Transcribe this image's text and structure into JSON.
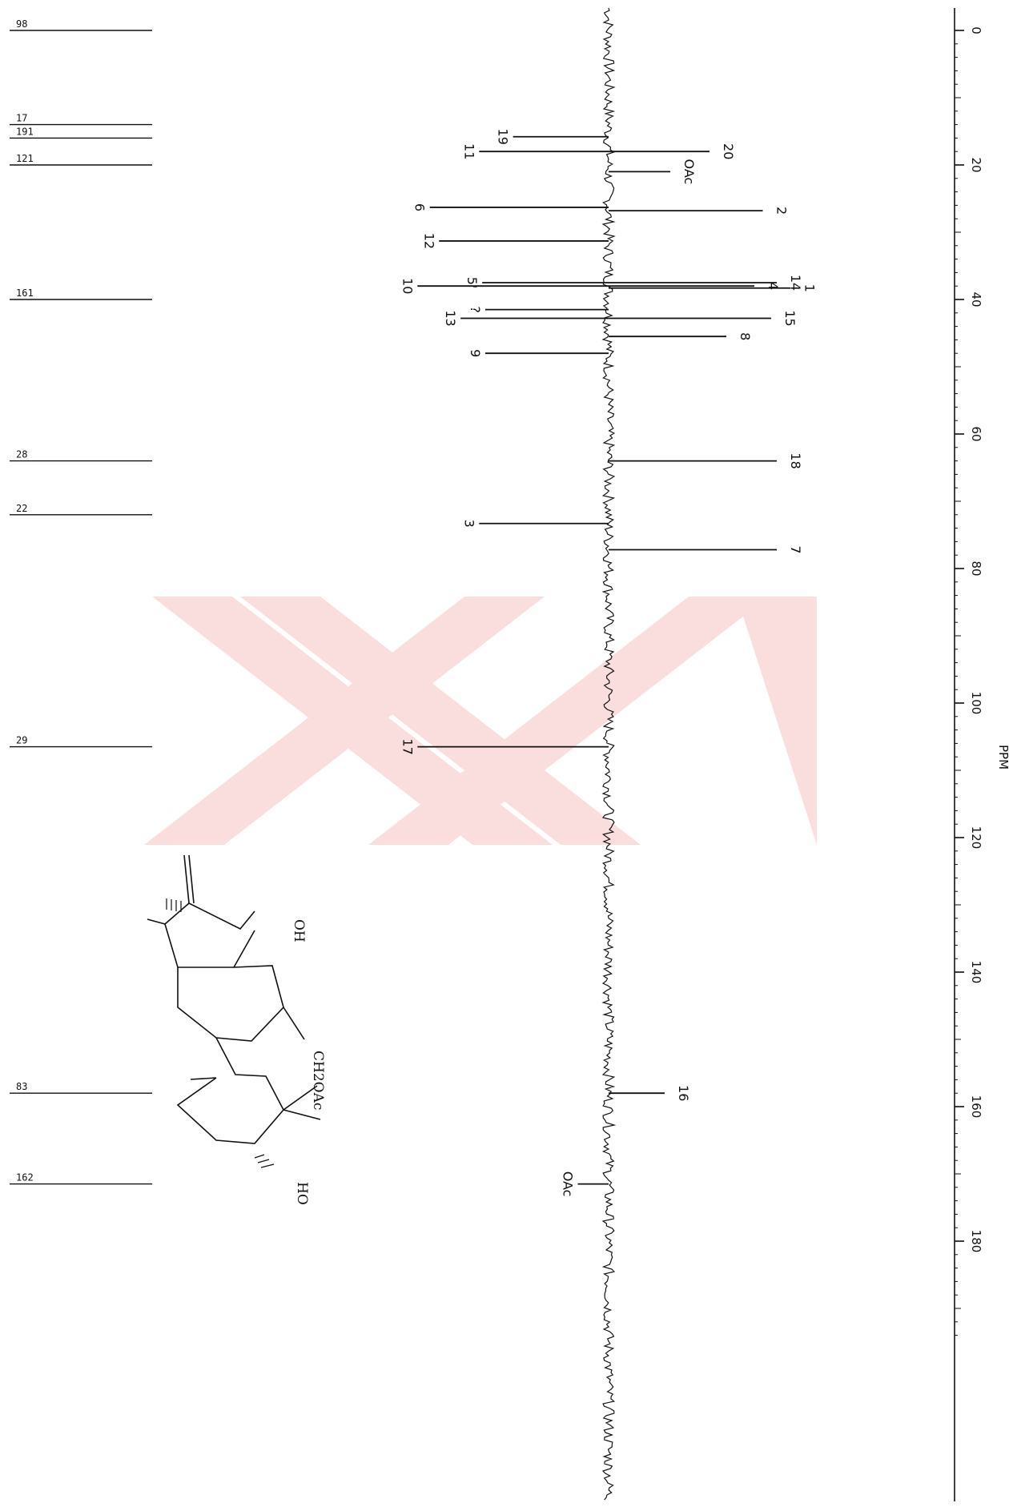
{
  "chart_data": {
    "type": "line",
    "title": "",
    "xlabel": "PPM",
    "xlim": [
      0,
      195
    ],
    "x_reversed": true,
    "orientation": "rotated-90",
    "ticks": [
      "0",
      "20",
      "40",
      "60",
      "80",
      "100",
      "120",
      "140",
      "160",
      "180"
    ],
    "series": [
      {
        "points": [
          {
            "x": 15.8,
            "y": 0.31,
            "label": "19"
          },
          {
            "x": 18.0,
            "y": 0.36,
            "label": "20"
          },
          {
            "x": 18.0,
            "y": 0.42,
            "label": "11"
          },
          {
            "x": 21.0,
            "y": 0.22,
            "label": "OAc"
          },
          {
            "x": 26.3,
            "y": 0.58,
            "label": "6"
          },
          {
            "x": 26.8,
            "y": 0.55,
            "label": "2"
          },
          {
            "x": 31.3,
            "y": 0.55,
            "label": "12"
          },
          {
            "x": 37.5,
            "y": 0.6,
            "label": "14"
          },
          {
            "x": 37.5,
            "y": 0.41,
            "label": "5'"
          },
          {
            "x": 38.0,
            "y": 0.52,
            "label": "4"
          },
          {
            "x": 38.0,
            "y": 0.62,
            "label": "10"
          },
          {
            "x": 38.3,
            "y": 0.65,
            "label": "1"
          },
          {
            "x": 41.5,
            "y": 0.4,
            "label": "?"
          },
          {
            "x": 42.8,
            "y": 0.58,
            "label": "15"
          },
          {
            "x": 42.8,
            "y": 0.48,
            "label": "13"
          },
          {
            "x": 45.5,
            "y": 0.42,
            "label": "8"
          },
          {
            "x": 48.0,
            "y": 0.4,
            "label": "9"
          },
          {
            "x": 64.0,
            "y": 0.6,
            "label": "18"
          },
          {
            "x": 73.3,
            "y": 0.42,
            "label": "3"
          },
          {
            "x": 77.2,
            "y": 0.6,
            "label": "7"
          },
          {
            "x": 106.5,
            "y": 0.62,
            "label": "17"
          },
          {
            "x": 158.0,
            "y": 0.2,
            "label": "16"
          },
          {
            "x": 171.5,
            "y": 0.1,
            "label": "OAc"
          }
        ]
      }
    ]
  },
  "structure": {
    "labels": [
      "OH",
      "CH2OAc",
      "HO"
    ]
  },
  "integral_tags": [
    "98",
    "17",
    "28",
    "22",
    "29",
    "83",
    "162",
    "191",
    "121",
    "161"
  ]
}
